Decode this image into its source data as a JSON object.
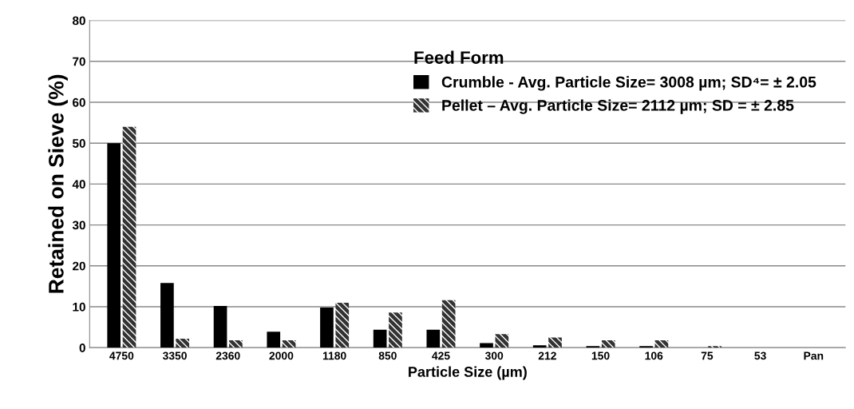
{
  "chart_data": {
    "type": "bar",
    "xlabel": "Particle Size (µm)",
    "ylabel": "Retained on Sieve (%)",
    "legend_title": "Feed Form",
    "categories": [
      "4750",
      "3350",
      "2360",
      "2000",
      "1180",
      "850",
      "425",
      "300",
      "212",
      "150",
      "106",
      "75",
      "53",
      "Pan"
    ],
    "series": [
      {
        "name": "Crumble - Avg. Particle Size= 3008 µm; SD⁴= ± 2.05",
        "color": "#000000",
        "values": [
          50,
          15.8,
          10.2,
          3.9,
          9.8,
          4.4,
          4.4,
          1.1,
          0.6,
          0.4,
          0.4,
          null,
          0,
          0
        ]
      },
      {
        "name": "Pellet – Avg. Particle Size= 2112 µm; SD = ± 2.85",
        "color": "#333333",
        "values": [
          54,
          2.2,
          1.8,
          1.8,
          11,
          8.6,
          11.6,
          3.3,
          2.5,
          1.8,
          1.8,
          0.4,
          0,
          0
        ]
      }
    ],
    "ylim": [
      0,
      80
    ],
    "yticks": [
      0,
      10,
      20,
      30,
      40,
      50,
      60,
      70,
      80
    ],
    "grid": "y",
    "legend": "top right"
  }
}
